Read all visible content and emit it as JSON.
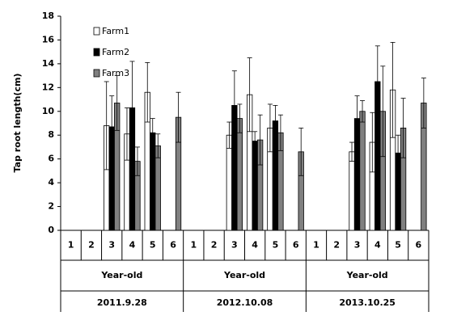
{
  "chart_data": {
    "type": "bar",
    "y_label": "Tap root length(cm)",
    "categories": [
      "1",
      "2",
      "3",
      "4",
      "5",
      "6",
      "1",
      "2",
      "3",
      "4",
      "5",
      "6",
      "1",
      "2",
      "3",
      "4",
      "5",
      "6"
    ],
    "group_labels": [
      "Year-old",
      "Year-old",
      "Year-old"
    ],
    "group_dates": [
      "2011.9.28",
      "2012.10.08",
      "2013.10.25"
    ],
    "ylim": [
      0,
      18
    ],
    "yticks": [
      0,
      2,
      4,
      6,
      8,
      10,
      12,
      14,
      16,
      18
    ],
    "series": [
      {
        "name": "Farm1",
        "color": "#ffffff",
        "values": [
          null,
          null,
          8.8,
          8.1,
          11.6,
          null,
          null,
          null,
          8.0,
          11.4,
          8.6,
          null,
          null,
          null,
          6.6,
          7.4,
          11.8,
          null
        ],
        "errors": [
          null,
          null,
          3.7,
          2.2,
          2.5,
          null,
          null,
          null,
          1.1,
          3.1,
          2.0,
          null,
          null,
          null,
          0.8,
          2.5,
          4.0,
          null
        ]
      },
      {
        "name": "Farm2",
        "color": "#000000",
        "values": [
          null,
          null,
          8.7,
          10.3,
          8.2,
          null,
          null,
          null,
          10.5,
          7.5,
          9.2,
          null,
          null,
          null,
          9.4,
          12.5,
          6.5,
          null
        ],
        "errors": [
          null,
          null,
          2.6,
          3.9,
          1.2,
          null,
          null,
          null,
          2.9,
          0.8,
          1.3,
          null,
          null,
          null,
          1.9,
          3.0,
          1.5,
          null
        ]
      },
      {
        "name": "Farm3",
        "color": "#808080",
        "values": [
          null,
          null,
          10.7,
          5.8,
          7.1,
          9.5,
          null,
          null,
          9.4,
          7.6,
          8.2,
          6.6,
          null,
          null,
          10.0,
          10.0,
          8.6,
          10.7
        ],
        "errors": [
          null,
          null,
          2.3,
          1.2,
          1.0,
          2.1,
          null,
          null,
          1.2,
          2.1,
          1.5,
          2.0,
          null,
          null,
          0.9,
          3.8,
          2.5,
          2.1
        ]
      }
    ]
  }
}
